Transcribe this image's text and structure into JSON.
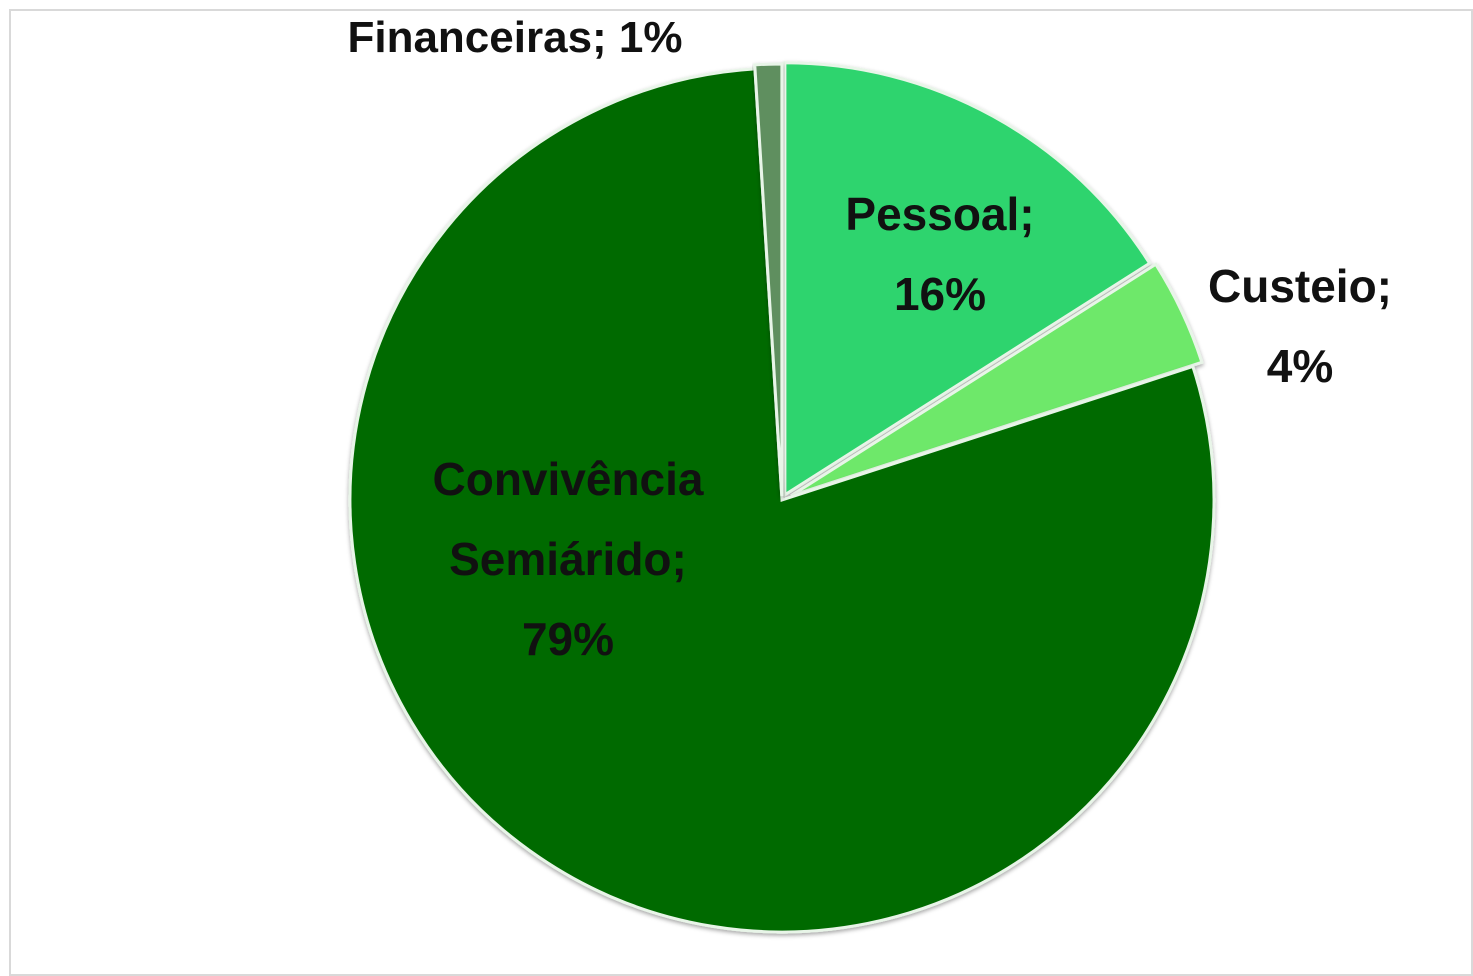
{
  "chart_data": {
    "type": "pie",
    "categories": [
      "Pessoal",
      "Custeio",
      "Convivência Semiárido",
      "Financeiras"
    ],
    "values": [
      16,
      4,
      79,
      1
    ],
    "value_labels": [
      "Pessoal; 16%",
      "Custeio; 4%",
      "Convivência Semiárido; 79%",
      "Financeiras; 1%"
    ],
    "colors": [
      "#2fd46e",
      "#6ee86a",
      "#056b05",
      "#5f8f5f"
    ]
  }
}
